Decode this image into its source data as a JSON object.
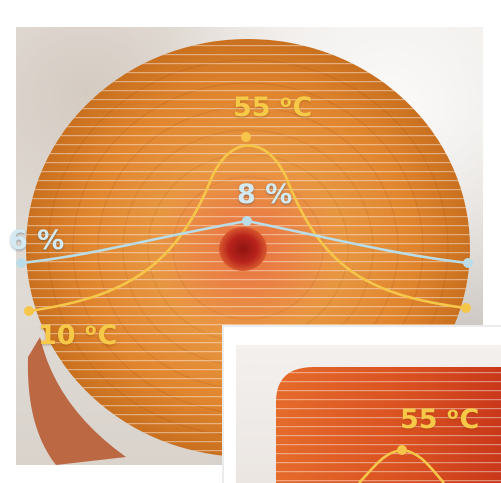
{
  "main_view": {
    "temp_peak_label": "55",
    "temp_peak_unit": "C",
    "temp_edge_label": "10",
    "temp_edge_unit": "C",
    "moisture_peak_label": "8 %",
    "moisture_edge_label": "6 %"
  },
  "inset_view": {
    "temp_peak_label": "55",
    "temp_peak_unit": "C"
  },
  "colors": {
    "temperature_curve": "#f6c64a",
    "moisture_curve": "#b9dce6",
    "heat_core": "#b8231c",
    "roll_orange": "#e48a2e"
  }
}
